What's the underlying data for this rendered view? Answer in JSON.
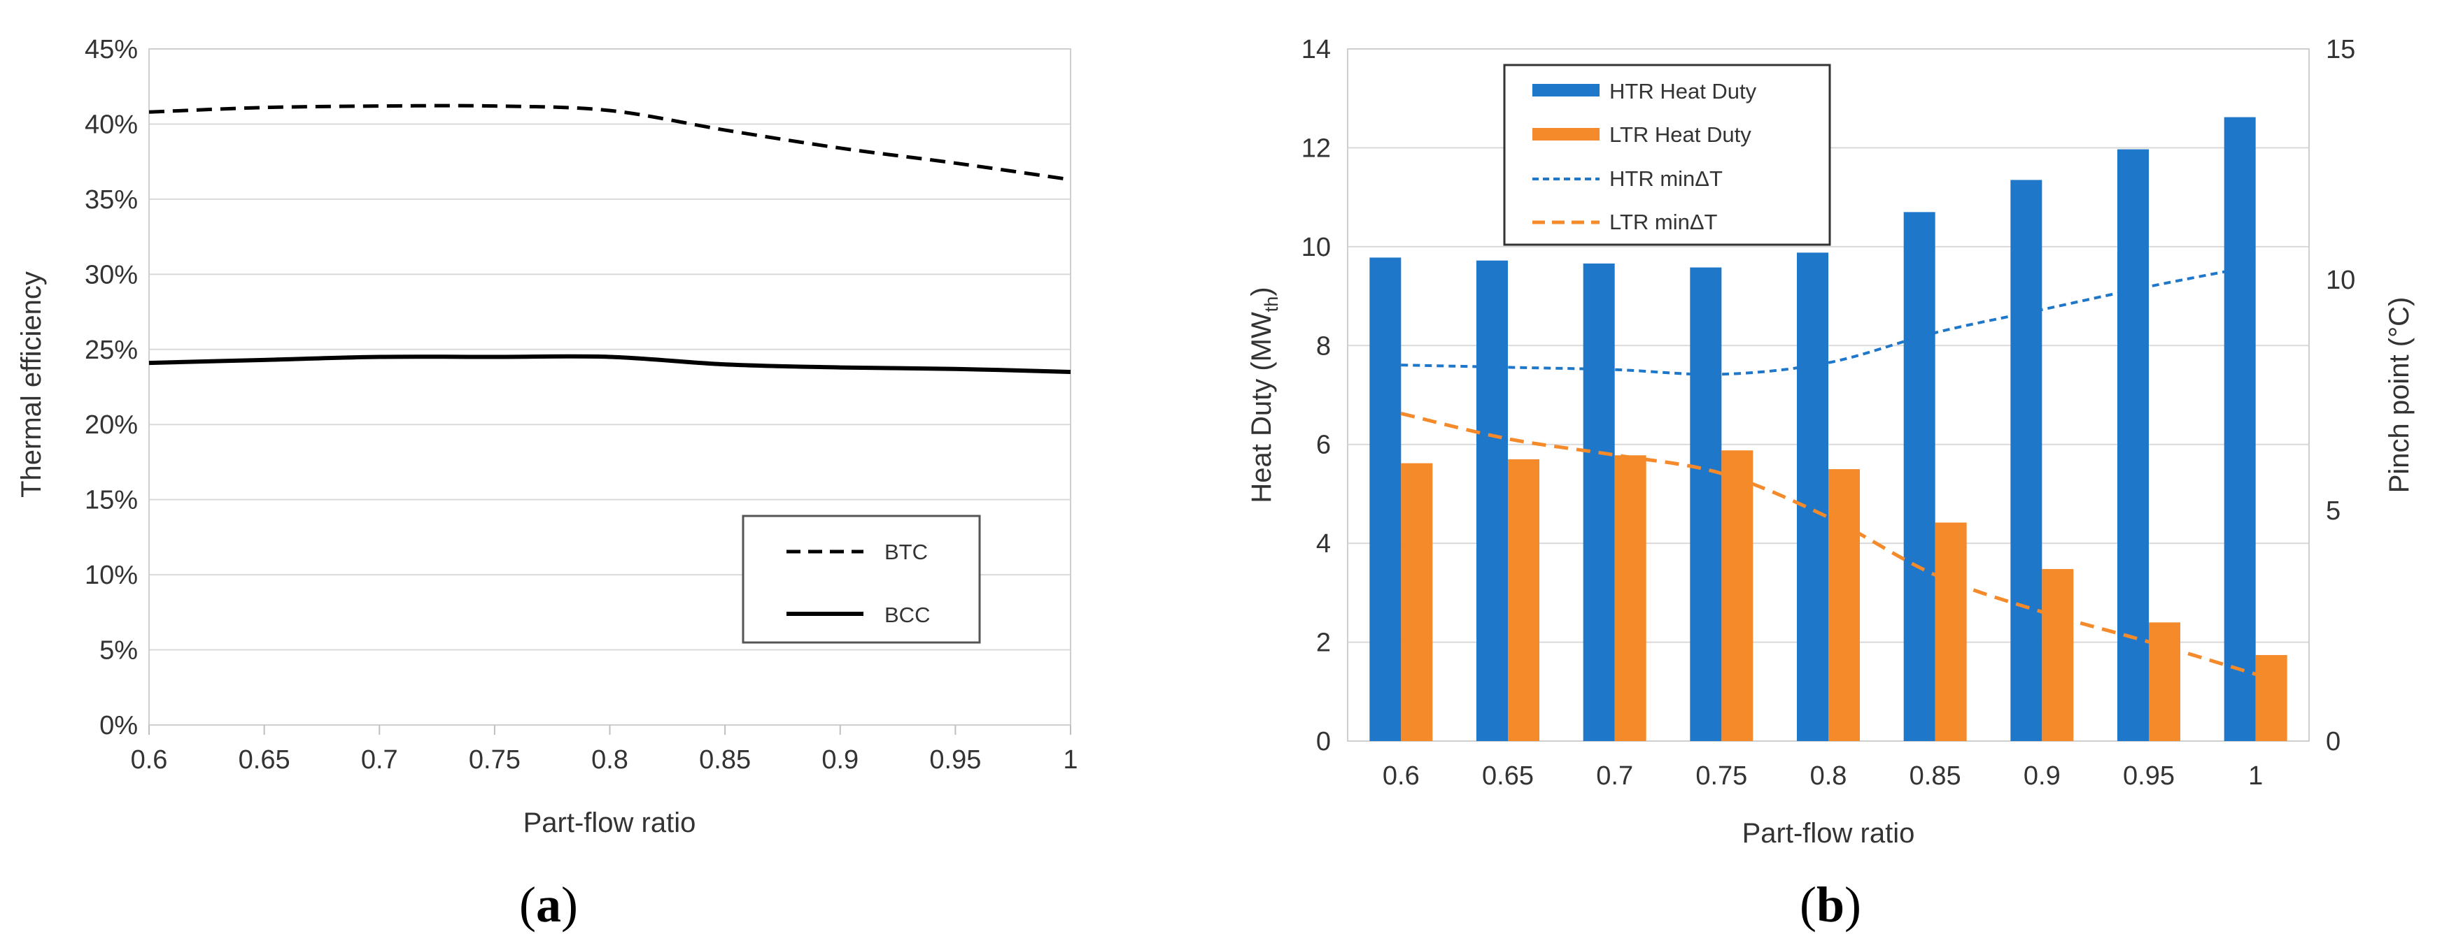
{
  "chart_data": [
    {
      "type": "line",
      "panel_label": {
        "open": "(",
        "letter": "a",
        "close": ")"
      },
      "xlabel": "Part-flow ratio",
      "ylabel": "Thermal efficiency",
      "xlim": [
        0.6,
        1
      ],
      "ylim": [
        0,
        0.45
      ],
      "x_ticks": [
        "0.6",
        "0.65",
        "0.7",
        "0.75",
        "0.8",
        "0.85",
        "0.9",
        "0.95",
        "1"
      ],
      "y_ticks": [
        "0%",
        "5%",
        "10%",
        "15%",
        "20%",
        "25%",
        "30%",
        "35%",
        "40%",
        "45%"
      ],
      "legend_position": "bottom-right",
      "series": [
        {
          "name": "BTC",
          "style": "dashed",
          "x": [
            0.6,
            0.65,
            0.7,
            0.75,
            0.8,
            0.85,
            0.9,
            0.95,
            1
          ],
          "values": [
            0.408,
            0.411,
            0.412,
            0.412,
            0.409,
            0.396,
            0.384,
            0.374,
            0.363
          ]
        },
        {
          "name": "BCC",
          "style": "solid",
          "x": [
            0.6,
            0.65,
            0.7,
            0.75,
            0.8,
            0.85,
            0.9,
            0.95,
            1
          ],
          "values": [
            0.241,
            0.243,
            0.245,
            0.245,
            0.245,
            0.24,
            0.238,
            0.237,
            0.235
          ]
        }
      ]
    },
    {
      "type": "bar",
      "panel_label": {
        "open": "(",
        "letter": "b",
        "close": ")"
      },
      "xlabel": "Part-flow ratio",
      "ylabel": {
        "main": "Heat Duty (MW",
        "sub": "th",
        "end": ")"
      },
      "y2label": "Pinch point  (°C)",
      "categories": [
        "0.6",
        "0.65",
        "0.7",
        "0.75",
        "0.8",
        "0.85",
        "0.9",
        "0.95",
        "1"
      ],
      "ylim": [
        0,
        14
      ],
      "y2lim": [
        0,
        15
      ],
      "y_ticks": [
        "0",
        "2",
        "4",
        "6",
        "8",
        "10",
        "12",
        "14"
      ],
      "y2_ticks": [
        "0",
        "5",
        "10",
        "15"
      ],
      "legend_position": "top-left",
      "series": [
        {
          "name": "HTR Heat Duty",
          "kind": "bar",
          "axis": "left",
          "color": "#1f77c9",
          "values": [
            9.78,
            9.72,
            9.66,
            9.58,
            9.88,
            10.7,
            11.35,
            11.97,
            12.62
          ]
        },
        {
          "name": "LTR Heat Duty",
          "kind": "bar",
          "axis": "left",
          "color": "#f58a2b",
          "values": [
            5.62,
            5.7,
            5.78,
            5.88,
            5.5,
            4.42,
            3.48,
            2.4,
            1.74
          ]
        },
        {
          "name": "HTR minΔT",
          "kind": "line",
          "style": "short-dash",
          "axis": "right",
          "color": "#1f77c9",
          "values": [
            8.15,
            8.1,
            8.05,
            7.95,
            8.2,
            8.85,
            9.35,
            9.85,
            10.3
          ]
        },
        {
          "name": "LTR minΔT",
          "kind": "line",
          "style": "long-dash",
          "axis": "right",
          "color": "#f58a2b",
          "values": [
            7.1,
            6.55,
            6.2,
            5.8,
            4.85,
            3.6,
            2.8,
            2.15,
            1.45
          ]
        }
      ]
    }
  ]
}
